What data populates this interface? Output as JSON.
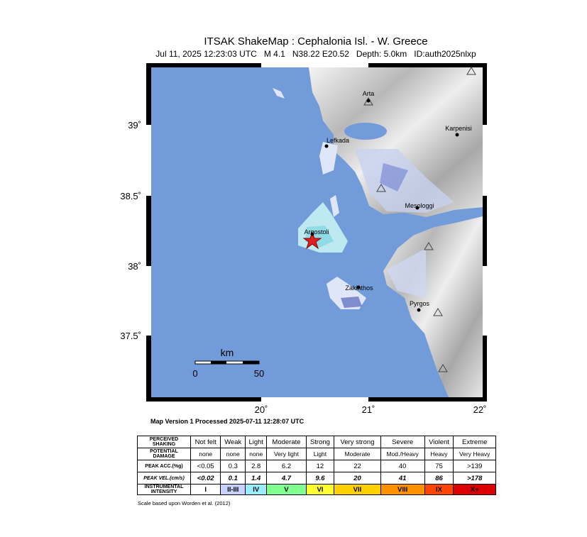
{
  "header": {
    "title": "ITSAK ShakeMap : Cephalonia Isl. - W. Greece",
    "subtitle": [
      "Jul 11, 2025 12:23:03 UTC",
      "M 4.1",
      "N38.22 E20.52",
      "Depth: 5.0km",
      "ID:auth2025nlxp"
    ]
  },
  "map": {
    "lat_labels": [
      "39˚",
      "38.5˚",
      "38˚",
      "37.5˚"
    ],
    "lon_labels": [
      "20˚",
      "21˚",
      "22˚"
    ],
    "places": [
      "Arta",
      "Lefkada",
      "Karpenisi",
      "Mesologgi",
      "Argostoli",
      "Zakinthos",
      "Pyrgos"
    ],
    "scale": {
      "unit": "km",
      "start": "0",
      "end": "50"
    }
  },
  "version": "Map Version 1 Processed 2025-07-11 12:28:07 UTC",
  "legend": {
    "rows": [
      {
        "label": "PERCEIVED SHAKING",
        "cells": [
          "Not felt",
          "Weak",
          "Light",
          "Moderate",
          "Strong",
          "Very strong",
          "Severe",
          "Violent",
          "Extreme"
        ]
      },
      {
        "label": "POTENTIAL DAMAGE",
        "cells": [
          "none",
          "none",
          "none",
          "Very light",
          "Light",
          "Moderate",
          "Mod./Heavy",
          "Heavy",
          "Very Heavy"
        ]
      },
      {
        "label": "PEAK ACC.(%g)",
        "cells": [
          "<0.05",
          "0.3",
          "2.8",
          "6.2",
          "12",
          "22",
          "40",
          "75",
          ">139"
        ]
      },
      {
        "label": "PEAK VEL.(cm/s)",
        "cells": [
          "<0.02",
          "0.1",
          "1.4",
          "4.7",
          "9.6",
          "20",
          "41",
          "86",
          ">178"
        ]
      },
      {
        "label": "INSTRUMENTAL INTENSITY",
        "cells": [
          "I",
          "II-III",
          "IV",
          "V",
          "VI",
          "VII",
          "VIII",
          "IX",
          "X+"
        ]
      }
    ],
    "footnote": "Scale based upon Worden et al. (2012)"
  }
}
